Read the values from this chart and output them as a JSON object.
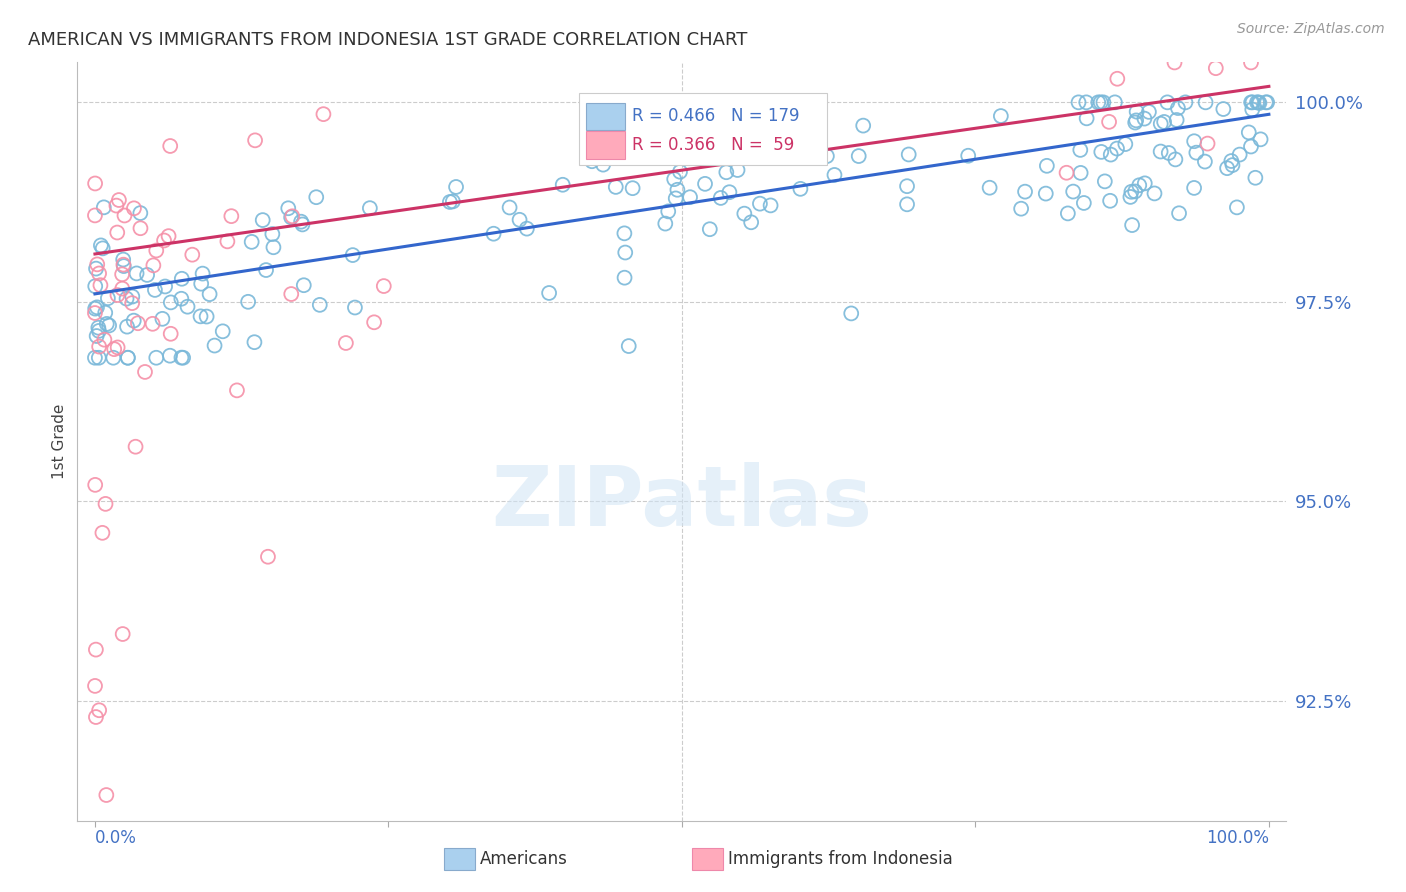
{
  "title": "AMERICAN VS IMMIGRANTS FROM INDONESIA 1ST GRADE CORRELATION CHART",
  "source": "Source: ZipAtlas.com",
  "ylabel": "1st Grade",
  "watermark": "ZIPatlas",
  "legend_blue_r": "R = 0.466",
  "legend_blue_n": "N = 179",
  "legend_pink_r": "R = 0.366",
  "legend_pink_n": "N =  59",
  "legend_blue_label": "Americans",
  "legend_pink_label": "Immigrants from Indonesia",
  "ytick_labels": [
    "92.5%",
    "95.0%",
    "97.5%",
    "100.0%"
  ],
  "ytick_values": [
    0.925,
    0.95,
    0.975,
    1.0
  ],
  "xlim": [
    0.0,
    1.0
  ],
  "ylim": [
    0.91,
    1.005
  ],
  "blue_color": "#7ab8d9",
  "pink_color": "#f590a8",
  "blue_line_color": "#3366cc",
  "pink_line_color": "#cc3366",
  "grid_color": "#cccccc",
  "tick_label_color": "#4472c4",
  "title_color": "#333333",
  "blue_trendline_y0": 0.976,
  "blue_trendline_y1": 0.9985,
  "pink_trendline_y0": 0.981,
  "pink_trendline_y1": 1.002
}
